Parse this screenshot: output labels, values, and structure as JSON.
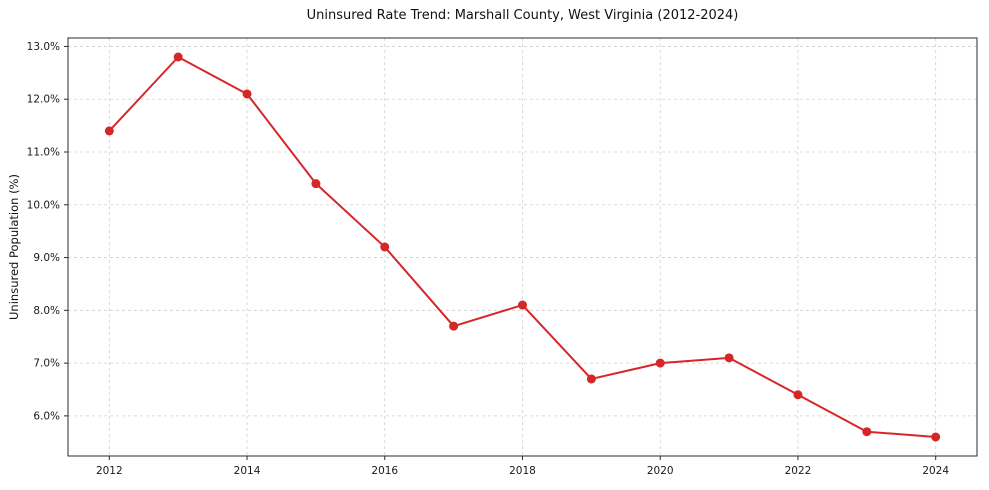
{
  "chart_data": {
    "type": "line",
    "title": "Uninsured Rate Trend: Marshall County, West Virginia (2012-2024)",
    "xlabel": "",
    "ylabel": "Uninsured Population (%)",
    "x": [
      2012,
      2013,
      2014,
      2015,
      2016,
      2017,
      2018,
      2019,
      2020,
      2021,
      2022,
      2023,
      2024
    ],
    "values": [
      11.4,
      12.8,
      12.1,
      10.4,
      9.2,
      7.7,
      8.1,
      6.7,
      7.0,
      7.1,
      6.4,
      5.7,
      5.6
    ],
    "xticks": [
      2012,
      2014,
      2016,
      2018,
      2020,
      2022,
      2024
    ],
    "yticks": [
      6.0,
      7.0,
      8.0,
      9.0,
      10.0,
      11.0,
      12.0,
      13.0
    ],
    "ytick_suffix": "%",
    "xlim": [
      2011.4,
      2024.6
    ],
    "ylim": [
      5.24,
      13.16
    ],
    "grid": true,
    "grid_style": "dashed",
    "legend": false,
    "line_color": "#d62728",
    "marker": "circle",
    "axis_color": "#2b2b2b",
    "grid_color": "#cfcfcf",
    "tick_label_color": "#1a1a1a"
  }
}
